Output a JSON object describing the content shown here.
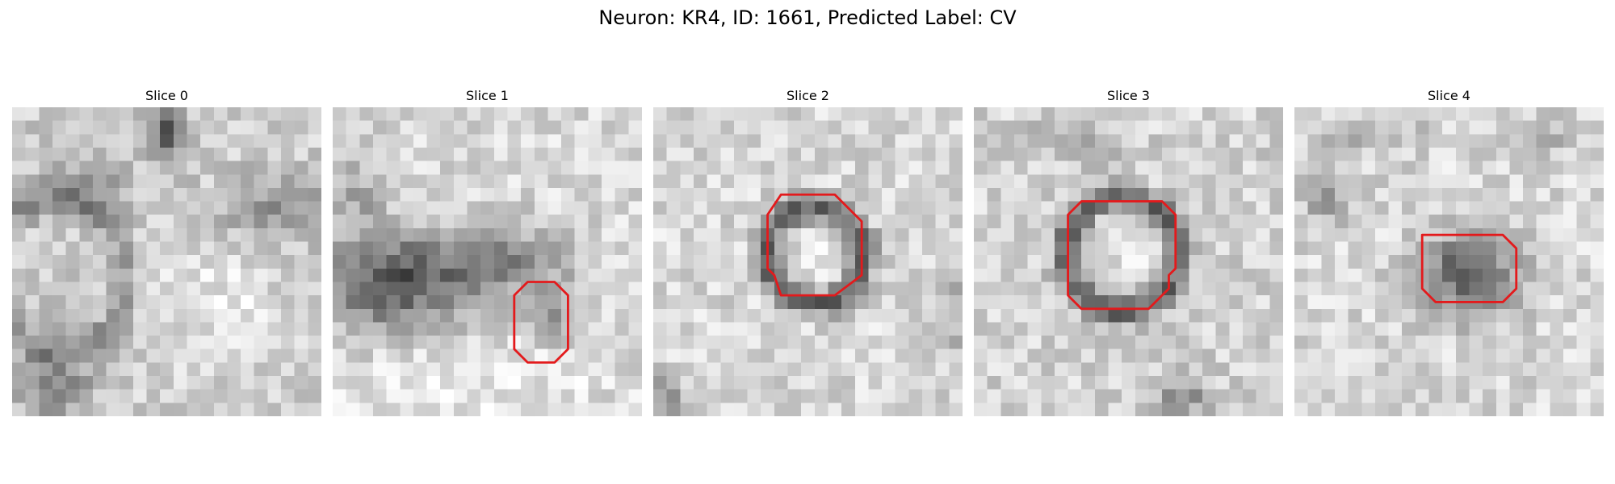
{
  "figure": {
    "title": "Neuron: KR4, ID: 1661, Predicted Label: CV",
    "contour_color": "#e31a1c",
    "panels": [
      {
        "title": "Slice 0",
        "contour": []
      },
      {
        "title": "Slice 1",
        "contour": [
          [
            14.5,
            13
          ],
          [
            16.5,
            13
          ],
          [
            17.5,
            14
          ],
          [
            17.5,
            18
          ],
          [
            16.5,
            19
          ],
          [
            14.5,
            19
          ],
          [
            13.5,
            18
          ],
          [
            13.5,
            14
          ]
        ]
      },
      {
        "title": "Slice 2",
        "contour": [
          [
            9.5,
            6.5
          ],
          [
            13.5,
            6.5
          ],
          [
            15.5,
            8.5
          ],
          [
            15.5,
            12.5
          ],
          [
            13.5,
            14
          ],
          [
            9.5,
            14
          ],
          [
            9,
            12.5
          ],
          [
            8.5,
            12
          ],
          [
            8.5,
            8
          ]
        ]
      },
      {
        "title": "Slice 3",
        "contour": [
          [
            8,
            7
          ],
          [
            14,
            7
          ],
          [
            15,
            8
          ],
          [
            15,
            12
          ],
          [
            14.5,
            12.5
          ],
          [
            14.5,
            13.5
          ],
          [
            13,
            15
          ],
          [
            8,
            15
          ],
          [
            7,
            14
          ],
          [
            7,
            8
          ]
        ]
      },
      {
        "title": "Slice 4",
        "contour": [
          [
            9.5,
            9.5
          ],
          [
            15.5,
            9.5
          ],
          [
            16.5,
            10.5
          ],
          [
            16.5,
            13.5
          ],
          [
            15.5,
            14.5
          ],
          [
            10.5,
            14.5
          ],
          [
            9.5,
            13.5
          ]
        ]
      }
    ]
  }
}
